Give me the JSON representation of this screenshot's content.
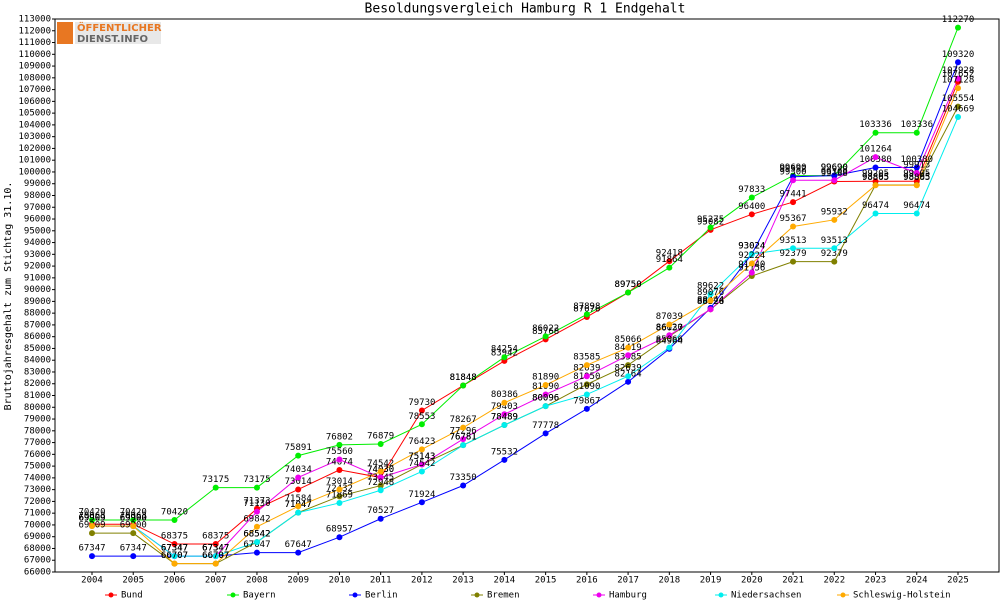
{
  "logo": {
    "line1": "ÖFFENTLICHER",
    "line2": "DIENST.INFO"
  },
  "chart_data": {
    "type": "line",
    "title": "Besoldungsvergleich Hamburg R 1 Endgehalt",
    "y_label": "Bruttojahresgehalt zum Stichtag 31.10.",
    "categories": [
      "2004",
      "2005",
      "2006",
      "2007",
      "2008",
      "2009",
      "2010",
      "2011",
      "2012",
      "2013",
      "2014",
      "2015",
      "2016",
      "2017",
      "2018",
      "2019",
      "2020",
      "2021",
      "2022",
      "2023",
      "2024",
      "2025"
    ],
    "ylim": [
      66000,
      113000
    ],
    "yticks": [
      66000,
      67000,
      68000,
      69000,
      70000,
      71000,
      72000,
      73000,
      74000,
      75000,
      76000,
      77000,
      78000,
      79000,
      80000,
      81000,
      82000,
      83000,
      84000,
      85000,
      86000,
      87000,
      88000,
      89000,
      90000,
      91000,
      92000,
      93000,
      94000,
      95000,
      96000,
      97000,
      98000,
      99000,
      100000,
      101000,
      102000,
      103000,
      104000,
      105000,
      106000,
      107000,
      108000,
      109000,
      110000,
      111000,
      112000,
      113000
    ],
    "series": [
      {
        "name": "Bund",
        "color": "#ff0000",
        "values": [
          70063,
          70063,
          68375,
          68375,
          71373,
          73014,
          74674,
          74030,
          79730,
          81848,
          83942,
          85768,
          87676,
          89750,
          92418,
          95082,
          96400,
          97441,
          99188,
          99205,
          99205,
          107652
        ]
      },
      {
        "name": "Bayern",
        "color": "#00ee00",
        "values": [
          70420,
          70420,
          70420,
          73175,
          73175,
          75891,
          76802,
          76879,
          78553,
          81848,
          84254,
          86022,
          87898,
          89750,
          91864,
          95275,
          97833,
          99690,
          99690,
          103336,
          103336,
          112270
        ]
      },
      {
        "name": "Berlin",
        "color": "#0000ff",
        "values": [
          67347,
          67347,
          67347,
          67347,
          67647,
          67647,
          68957,
          70527,
          71924,
          73350,
          75532,
          77778,
          79867,
          82164,
          84964,
          88444,
          93024,
          99592,
          99690,
          100380,
          100380,
          109320
        ]
      },
      {
        "name": "Bremen",
        "color": "#808000",
        "values": [
          69309,
          69300,
          66707,
          66707,
          68542,
          71047,
          72432,
          73345,
          75143,
          76781,
          78489,
          80096,
          81950,
          83585,
          86037,
          88326,
          91156,
          92379,
          92379,
          98895,
          98895,
          105554
        ]
      },
      {
        "name": "Hamburg",
        "color": "#ee00ee",
        "values": [
          69909,
          69900,
          67347,
          67347,
          71130,
          74034,
          75560,
          74030,
          75143,
          77296,
          79403,
          81090,
          82639,
          84419,
          86120,
          88326,
          91440,
          99300,
          99300,
          101264,
          99913,
          107928
        ]
      },
      {
        "name": "Niedersachsen",
        "color": "#00eeee",
        "values": [
          69909,
          69900,
          67347,
          67347,
          68542,
          71047,
          71869,
          72948,
          74542,
          76781,
          78489,
          80096,
          81090,
          82639,
          85066,
          89622,
          93024,
          93513,
          93513,
          96474,
          96474,
          104669
        ]
      },
      {
        "name": "Schleswig-Holstein",
        "color": "#ffaa00",
        "values": [
          69909,
          69900,
          66707,
          66707,
          69842,
          71584,
          73014,
          74542,
          76423,
          78267,
          80386,
          81890,
          83585,
          85066,
          87039,
          89076,
          92224,
          95367,
          95932,
          98865,
          98865,
          107128
        ]
      }
    ]
  }
}
